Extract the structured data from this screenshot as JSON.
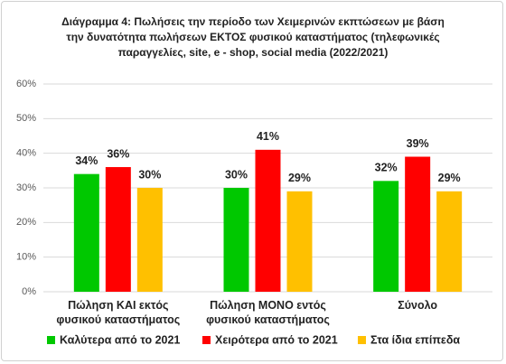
{
  "chart_data": {
    "type": "bar",
    "title": "Διάγραμμα 4: Πωλήσεις την περίοδο των Χειμερινών εκπτώσεων με βάση την δυνατότητα πωλήσεων ΕΚΤΟΣ φυσικού καταστήματος (τηλεφωνικές παραγγελίες, site, e - shop, social media (2022/2021)",
    "categories": [
      "Πώληση ΚΑΙ εκτός φυσικού καταστήματος",
      "Πώληση ΜΟΝΟ εντός φυσικού καταστήματος",
      "Σύνολο"
    ],
    "series": [
      {
        "name": "Καλύτερα από το 2021",
        "color": "#00c800",
        "values": [
          34,
          30,
          32
        ],
        "value_labels": [
          "34%",
          "30%",
          "32%"
        ]
      },
      {
        "name": "Χειρότερα από το 2021",
        "color": "#ff0000",
        "values": [
          36,
          41,
          39
        ],
        "value_labels": [
          "36%",
          "41%",
          "39%"
        ]
      },
      {
        "name": "Στα ίδια επίπεδα",
        "color": "#ffc000",
        "values": [
          30,
          29,
          29
        ],
        "value_labels": [
          "30%",
          "29%",
          "29%"
        ]
      }
    ],
    "ylim": [
      0,
      60
    ],
    "yticks": [
      {
        "value": 0,
        "label": "0%"
      },
      {
        "value": 10,
        "label": "10%"
      },
      {
        "value": 20,
        "label": "20%"
      },
      {
        "value": 30,
        "label": "30%"
      },
      {
        "value": 40,
        "label": "40%"
      },
      {
        "value": 50,
        "label": "50%"
      },
      {
        "value": 60,
        "label": "60%"
      }
    ],
    "grid": true
  }
}
